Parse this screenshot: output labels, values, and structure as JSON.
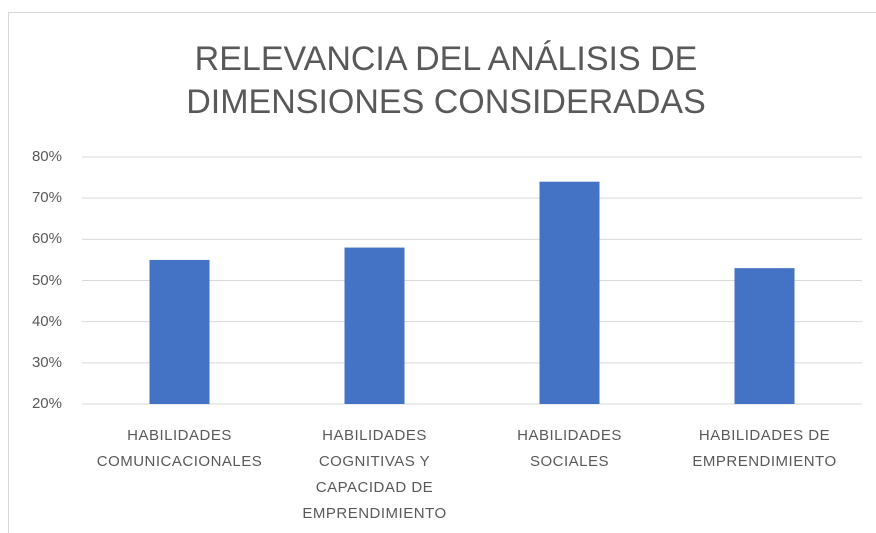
{
  "chart_data": {
    "type": "bar",
    "title": "RELEVANCIA DEL ANÁLISIS DE DIMENSIONES CONSIDERADAS",
    "categories": [
      "HABILIDADES COMUNICACIONALES",
      "HABILIDADES COGNITIVAS Y CAPACIDAD DE EMPRENDIMIENTO",
      "HABILIDADES SOCIALES",
      "HABILIDADES DE EMPRENDIMIENTO"
    ],
    "values": [
      55,
      58,
      74,
      53
    ],
    "color": "#4472c4",
    "ylim": [
      20,
      80
    ],
    "yticks": [
      {
        "value": 20,
        "label": "20%"
      },
      {
        "value": 30,
        "label": "30%"
      },
      {
        "value": 40,
        "label": "40%"
      },
      {
        "value": 50,
        "label": "50%"
      },
      {
        "value": 60,
        "label": "60%"
      },
      {
        "value": 70,
        "label": "70%"
      },
      {
        "value": 80,
        "label": "80%"
      }
    ],
    "grid": true
  }
}
